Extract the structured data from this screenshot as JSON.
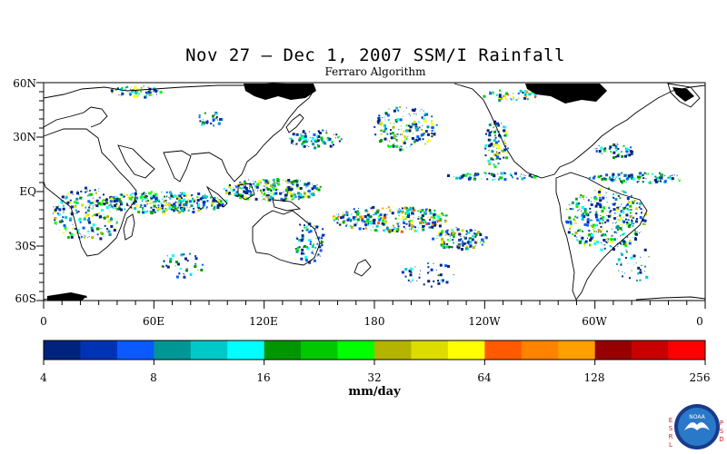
{
  "title": "Nov 27 – Dec 1, 2007 SSM/I Rainfall",
  "subtitle": "Ferraro Algorithm",
  "lat_labels": [
    "60N",
    "30N",
    "EQ",
    "30S",
    "60S"
  ],
  "lon_labels": [
    "0",
    "60E",
    "120E",
    "180",
    "120W",
    "60W",
    "0"
  ],
  "colorbar": {
    "colors": [
      "#00237d",
      "#0033b4",
      "#0a5aff",
      "#009696",
      "#00c8c8",
      "#00ffff",
      "#009600",
      "#00c800",
      "#00ff00",
      "#b4b400",
      "#dcdc00",
      "#ffff00",
      "#ff5a00",
      "#ff8200",
      "#ffa000",
      "#960000",
      "#c80000",
      "#ff0000"
    ],
    "tick_labels": [
      "4",
      "8",
      "16",
      "32",
      "64",
      "128",
      "256"
    ],
    "units": "mm/day"
  },
  "logo": {
    "left_letters": [
      "E",
      "S",
      "R",
      "L"
    ],
    "right_letters": [
      "P",
      "S",
      "D"
    ],
    "badge_text": "NOAA",
    "colors": {
      "outer": "#1a3a8a",
      "inner": "#2a78c8",
      "gull": "#ffffff",
      "letters": "#cc2222"
    }
  },
  "map": {
    "land_outline_color": "#000000",
    "sea_ice_color": "#000000",
    "background": "#ffffff"
  }
}
